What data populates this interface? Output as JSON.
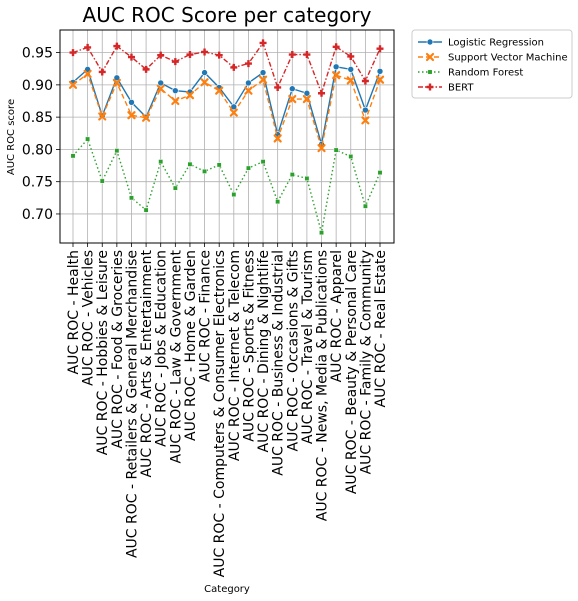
{
  "chart_data": {
    "type": "line",
    "title": "AUC ROC Score per category",
    "xlabel": "Category",
    "ylabel": "AUC ROC score",
    "ylim": [
      0.655,
      0.985
    ],
    "yticks": [
      "0.70",
      "0.75",
      "0.80",
      "0.85",
      "0.90",
      "0.95"
    ],
    "grid": true,
    "legend_position": "outside top-right",
    "categories": [
      "AUC ROC - Health",
      "AUC ROC - Vehicles",
      "AUC ROC - Hobbies & Leisure",
      "AUC ROC - Food & Groceries",
      "AUC ROC - Retailers & General Merchandise",
      "AUC ROC - Arts & Entertainment",
      "AUC ROC - Jobs & Education",
      "AUC ROC - Law & Government",
      "AUC ROC - Home & Garden",
      "AUC ROC - Finance",
      "AUC ROC - Computers & Consumer Electronics",
      "AUC ROC - Internet & Telecom",
      "AUC ROC - Sports & Fitness",
      "AUC ROC - Dining & Nightlife",
      "AUC ROC - Business & Industrial",
      "AUC ROC - Occasions & Gifts",
      "AUC ROC - Travel & Tourism",
      "AUC ROC - News, Media & Publications",
      "AUC ROC - Apparel",
      "AUC ROC - Beauty & Personal Care",
      "AUC ROC - Family & Community",
      "AUC ROC - Real Estate"
    ],
    "series": [
      {
        "name": "Logistic Regression",
        "color": "#1f77b4",
        "style": "solid",
        "marker": "circle",
        "values": [
          0.904,
          0.924,
          0.852,
          0.911,
          0.873,
          0.85,
          0.903,
          0.891,
          0.889,
          0.919,
          0.896,
          0.866,
          0.903,
          0.919,
          0.823,
          0.894,
          0.887,
          0.808,
          0.928,
          0.924,
          0.861,
          0.921
        ]
      },
      {
        "name": "Support Vector Machine",
        "color": "#ff7f0e",
        "style": "dashed",
        "marker": "x",
        "values": [
          0.9,
          0.917,
          0.851,
          0.903,
          0.853,
          0.849,
          0.894,
          0.875,
          0.884,
          0.904,
          0.891,
          0.857,
          0.891,
          0.908,
          0.817,
          0.878,
          0.878,
          0.802,
          0.915,
          0.907,
          0.845,
          0.908
        ]
      },
      {
        "name": "Random Forest",
        "color": "#2ca02c",
        "style": "dotted",
        "marker": "square",
        "values": [
          0.79,
          0.816,
          0.751,
          0.798,
          0.725,
          0.706,
          0.781,
          0.74,
          0.777,
          0.766,
          0.776,
          0.73,
          0.771,
          0.781,
          0.719,
          0.761,
          0.755,
          0.671,
          0.799,
          0.789,
          0.712,
          0.764
        ]
      },
      {
        "name": "BERT",
        "color": "#d62728",
        "style": "dashdot",
        "marker": "plus",
        "values": [
          0.95,
          0.958,
          0.92,
          0.96,
          0.943,
          0.924,
          0.946,
          0.936,
          0.947,
          0.951,
          0.946,
          0.927,
          0.933,
          0.965,
          0.896,
          0.947,
          0.947,
          0.887,
          0.959,
          0.944,
          0.906,
          0.956
        ]
      }
    ]
  }
}
